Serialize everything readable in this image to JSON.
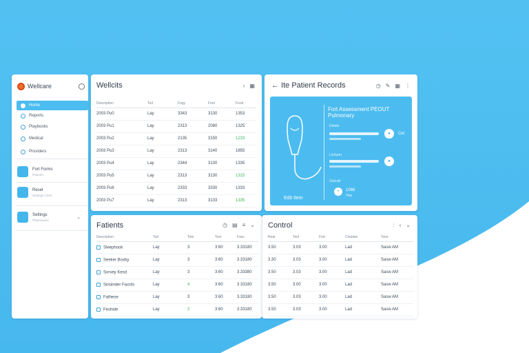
{
  "colors": {
    "accent": "#4bbdf0",
    "green": "#3cb55a",
    "white": "#ffffff"
  },
  "sidebar": {
    "title": "Wellcare",
    "items": [
      {
        "label": "Home",
        "icon": "home-icon",
        "active": true
      },
      {
        "label": "Reports",
        "icon": "report-icon"
      },
      {
        "label": "Playbooks",
        "icon": "book-icon"
      },
      {
        "label": "Medical",
        "icon": "medical-icon"
      },
      {
        "label": "Providers",
        "icon": "providers-icon"
      }
    ],
    "cards": [
      {
        "title": "Fort Forms",
        "sub": "Reports",
        "icon": "document-icon"
      },
      {
        "title": "Reset",
        "sub": "Settings Chart",
        "icon": "reset-icon"
      },
      {
        "title": "Settings",
        "sub": "Pharmacies",
        "icon": "settings-icon"
      }
    ]
  },
  "visits": {
    "title": "Wellcits",
    "columns": [
      "Description",
      "Tod",
      "Fogy",
      "Font",
      "Food"
    ],
    "rows": [
      [
        "2003 Pu0",
        "Lay",
        "3343",
        "3130",
        "1353"
      ],
      [
        "2003 Pu1",
        "Lay",
        "2313",
        "2080",
        "1325"
      ],
      [
        "2003 Pu2",
        "Lay",
        "2135",
        "3150",
        "1233"
      ],
      [
        "2003 Pu3",
        "Lay",
        "2313",
        "3140",
        "1855"
      ],
      [
        "2003 Pu4",
        "Lay",
        "2344",
        "3130",
        "1335"
      ],
      [
        "2003 Pu5",
        "Lay",
        "2313",
        "3130",
        "1315"
      ],
      [
        "2003 Pu6",
        "Lay",
        "2333",
        "3330",
        "1333"
      ],
      [
        "2003 Pu7",
        "Lay",
        "2313",
        "3133",
        "1335"
      ]
    ],
    "green_rows": [
      2,
      5,
      7
    ]
  },
  "records": {
    "title": "Ite Patient Records",
    "heading_line1": "Fort Assessment PEOUT",
    "heading_line2": "Pulmonary",
    "label1": "Delete",
    "value1": "Cel",
    "label2": "Lecturer",
    "label3": "Overall",
    "value3": "1088",
    "value3_sub": "Tote",
    "footer": "Edit Item"
  },
  "patients": {
    "title": "Fatients",
    "columns": [
      "Description",
      "Tod",
      "Tote",
      "Toxt",
      "Fasc"
    ],
    "rows": [
      [
        "Sleephook",
        "Lay",
        "3",
        "3:60",
        "3.33180"
      ],
      [
        "Seeker Boxby",
        "Lay",
        "3",
        "3:60",
        "3.33180"
      ],
      [
        "Sorvey Kesd",
        "Lay",
        "3",
        "3:60",
        "3.33380"
      ],
      [
        "Sinoinder Facrds",
        "Lay",
        "4",
        "3:60",
        "3.33180"
      ],
      [
        "Fathese",
        "Lay",
        "3",
        "3:60",
        "3.33180"
      ],
      [
        "Feshide",
        "Lay",
        "2",
        "3:60",
        "3.33180"
      ],
      [
        "Fathan",
        "Lay",
        "3",
        "3:60",
        "3.33130"
      ]
    ],
    "green_rows": [
      3,
      5
    ]
  },
  "control": {
    "title": "Control",
    "columns": [
      "Real",
      "Tool",
      "Fod",
      "Cloudex",
      "Tone"
    ],
    "rows": [
      [
        "3.50",
        "3.03",
        "3.00",
        "Lad",
        "Sasw AM"
      ],
      [
        "3.30",
        "3.03",
        "3.00",
        "Lad",
        "Sasw AM"
      ],
      [
        "3.50",
        "3.03",
        "3.00",
        "Lad",
        "Sasw AM"
      ],
      [
        "3.50",
        "3.00",
        "3.00",
        "Lad",
        "Sasw AM"
      ],
      [
        "3.50",
        "3.03",
        "3.00",
        "Lad",
        "Sasw AM"
      ],
      [
        "3.50",
        "3.03",
        "3.00",
        "Lad",
        "Sasw AM"
      ],
      [
        "3.50",
        "3.03",
        "3.00",
        "Lad",
        "Sasw AM"
      ]
    ]
  }
}
